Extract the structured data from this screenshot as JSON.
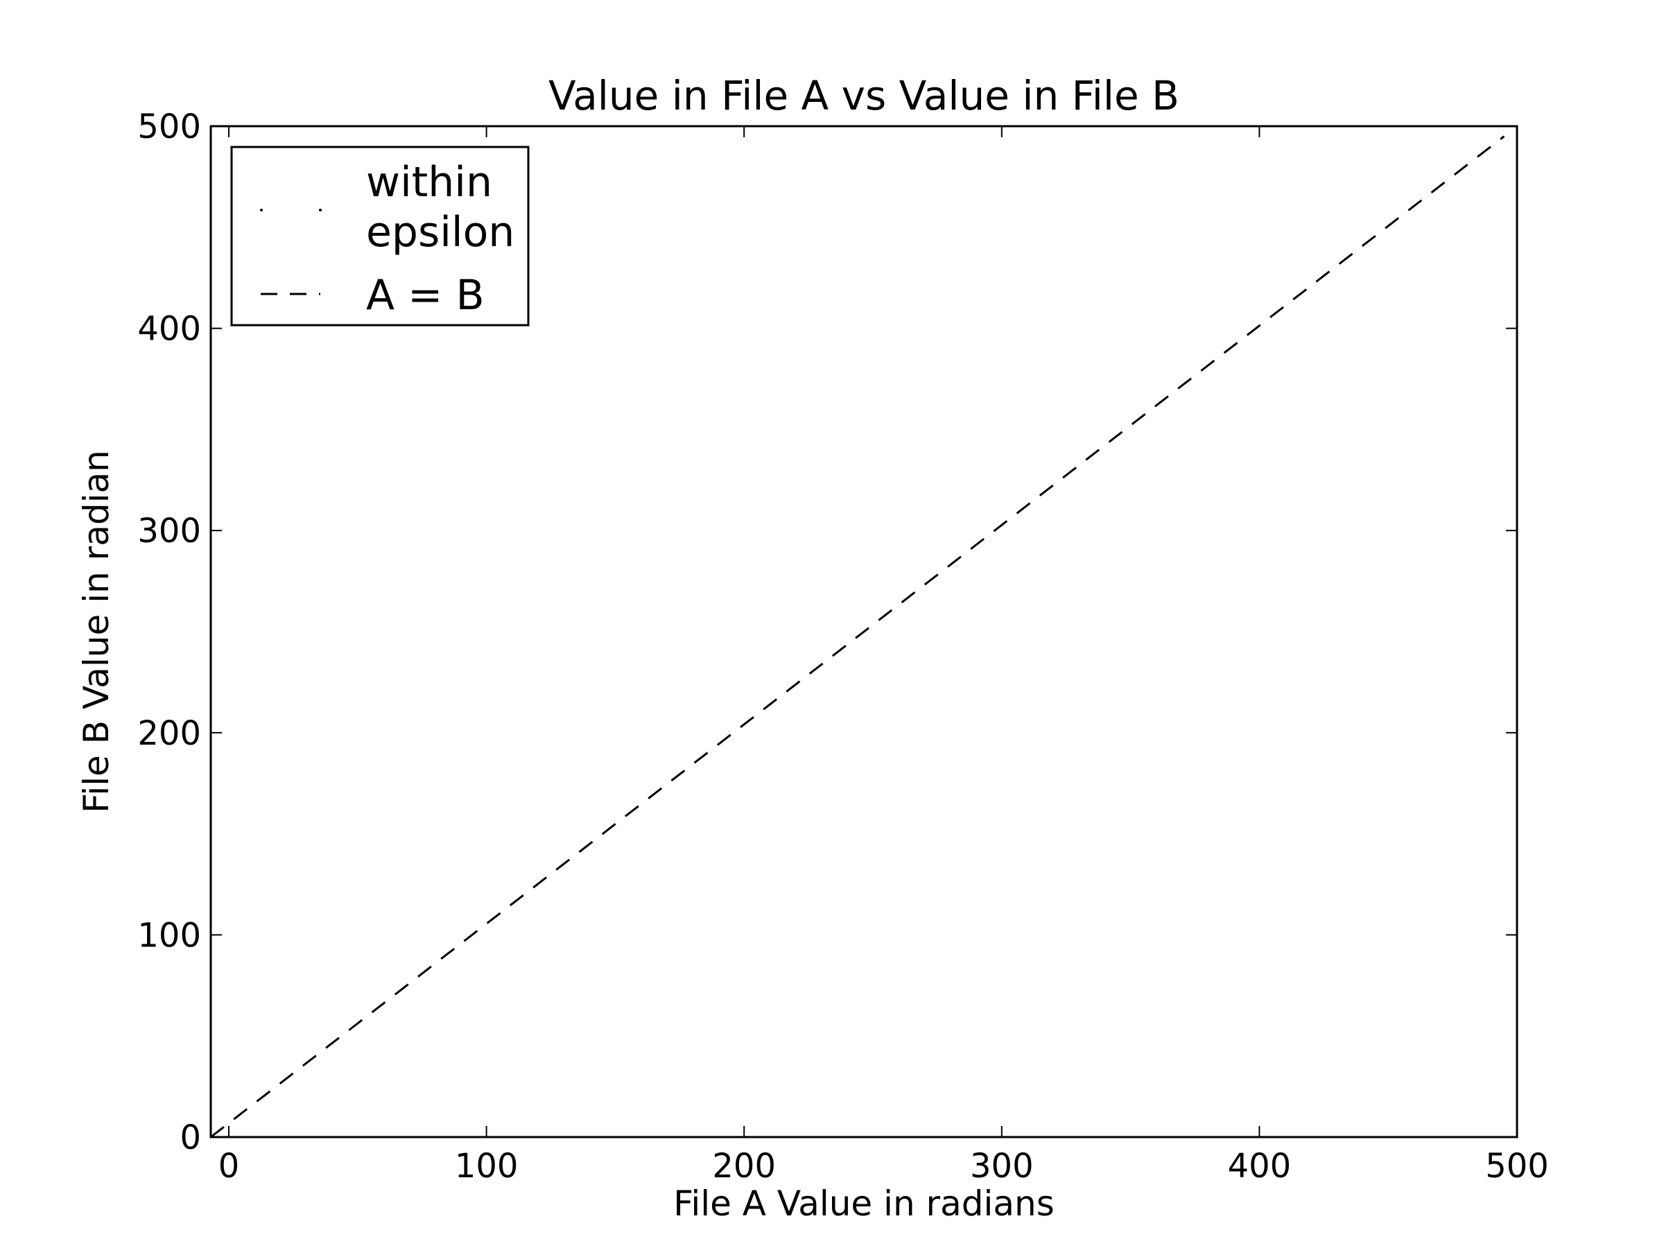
{
  "chart_data": {
    "type": "scatter",
    "title": "Value in File A vs Value in File B",
    "xlabel": "File A Value in radians",
    "ylabel": "File B Value in radian",
    "xlim": [
      -7,
      500
    ],
    "ylim": [
      0,
      500
    ],
    "xticks": [
      0,
      100,
      200,
      300,
      400,
      500
    ],
    "yticks": [
      0,
      100,
      200,
      300,
      400,
      500
    ],
    "grid": false,
    "legend_position": "top-left",
    "series": [
      {
        "name": "within epsilon",
        "name_lines": [
          "within",
          "epsilon"
        ],
        "marker": "point",
        "color": "#000000",
        "points": []
      },
      {
        "name": "A = B",
        "style": "dashed",
        "color": "#000000",
        "x": [
          -7,
          495
        ],
        "y": [
          0,
          495
        ]
      }
    ]
  }
}
